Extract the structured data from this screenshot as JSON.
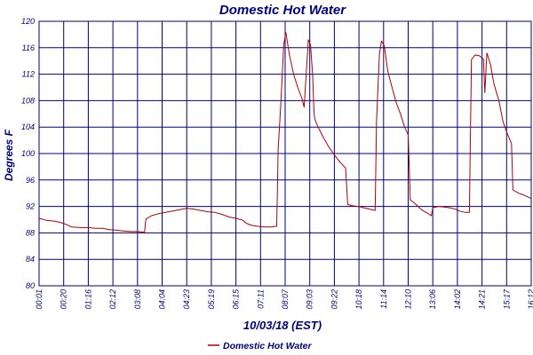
{
  "chart_data": {
    "type": "line",
    "title": "Domestic Hot Water",
    "xlabel": "10/03/18 (EST)",
    "ylabel": "Degrees F",
    "ylim": [
      80,
      120
    ],
    "yticks": [
      "80",
      "84",
      "88",
      "92",
      "96",
      "100",
      "104",
      "108",
      "112",
      "116",
      "120"
    ],
    "xticks": [
      "00:01",
      "00:20",
      "01:16",
      "02:12",
      "03:08",
      "04:04",
      "04:23",
      "05:19",
      "06:15",
      "07:11",
      "08:07",
      "09:03",
      "09:22",
      "10:18",
      "11:14",
      "12:10",
      "13:06",
      "14:02",
      "14:21",
      "15:17",
      "16:12"
    ],
    "grid": true,
    "legend_position": "bottom-center",
    "colors": {
      "series": "#b00000",
      "grid": "#000080",
      "text": "#000080"
    },
    "series": [
      {
        "name": "Domestic Hot Water",
        "points": [
          [
            0,
            90.2
          ],
          [
            0.5,
            89.9
          ],
          [
            1,
            89.8
          ],
          [
            1.5,
            89.6
          ],
          [
            1.9,
            89.3
          ],
          [
            2.3,
            88.9
          ],
          [
            3,
            88.8
          ],
          [
            3.5,
            88.8
          ],
          [
            4,
            88.7
          ],
          [
            4.5,
            88.7
          ],
          [
            5,
            88.5
          ],
          [
            5.5,
            88.4
          ],
          [
            6,
            88.3
          ],
          [
            6.5,
            88.2
          ],
          [
            7,
            88.2
          ],
          [
            7.5,
            88.1
          ],
          [
            7.6,
            90.1
          ],
          [
            8,
            90.6
          ],
          [
            8.5,
            90.9
          ],
          [
            9,
            91.1
          ],
          [
            9.5,
            91.3
          ],
          [
            10,
            91.5
          ],
          [
            10.5,
            91.7
          ],
          [
            11,
            91.6
          ],
          [
            11.5,
            91.4
          ],
          [
            12,
            91.2
          ],
          [
            12.5,
            91.1
          ],
          [
            13,
            90.8
          ],
          [
            13.5,
            90.4
          ],
          [
            14,
            90.2
          ],
          [
            14.5,
            89.9
          ],
          [
            14.7,
            89.5
          ],
          [
            15,
            89.2
          ],
          [
            15.5,
            89.0
          ],
          [
            16,
            88.9
          ],
          [
            16.5,
            88.9
          ],
          [
            16.9,
            89.0
          ],
          [
            17.0,
            100.5
          ],
          [
            17.2,
            108
          ],
          [
            17.4,
            116.5
          ],
          [
            17.55,
            118.3
          ],
          [
            17.8,
            115
          ],
          [
            18.1,
            112
          ],
          [
            18.4,
            110
          ],
          [
            18.7,
            108.3
          ],
          [
            18.85,
            107.0
          ],
          [
            19.0,
            112
          ],
          [
            19.15,
            117.2
          ],
          [
            19.3,
            116.5
          ],
          [
            19.45,
            112
          ],
          [
            19.55,
            106.5
          ],
          [
            19.6,
            105.3
          ],
          [
            19.8,
            104.2
          ],
          [
            20.2,
            102.5
          ],
          [
            20.6,
            101.0
          ],
          [
            21.0,
            99.8
          ],
          [
            21.4,
            98.7
          ],
          [
            21.8,
            97.8
          ],
          [
            21.95,
            92.3
          ],
          [
            22.3,
            92.1
          ],
          [
            22.7,
            92.0
          ],
          [
            23.1,
            91.8
          ],
          [
            23.5,
            91.6
          ],
          [
            23.9,
            91.4
          ],
          [
            24.0,
            105
          ],
          [
            24.2,
            115
          ],
          [
            24.35,
            117.0
          ],
          [
            24.55,
            116.3
          ],
          [
            24.8,
            112.5
          ],
          [
            25.1,
            110.0
          ],
          [
            25.4,
            107.7
          ],
          [
            25.7,
            106.0
          ],
          [
            26.0,
            104.0
          ],
          [
            26.25,
            102.8
          ],
          [
            26.4,
            93.0
          ],
          [
            26.8,
            92.3
          ],
          [
            27.2,
            91.5
          ],
          [
            27.6,
            91.0
          ],
          [
            27.9,
            90.6
          ],
          [
            28.0,
            91.8
          ],
          [
            28.4,
            92.0
          ],
          [
            28.8,
            91.9
          ],
          [
            29.2,
            91.8
          ],
          [
            29.6,
            91.6
          ],
          [
            29.9,
            91.3
          ],
          [
            30.3,
            91.1
          ],
          [
            30.6,
            91.1
          ],
          [
            30.75,
            114.2
          ],
          [
            31.0,
            114.9
          ],
          [
            31.3,
            114.8
          ],
          [
            31.6,
            114.3
          ],
          [
            31.7,
            109.2
          ],
          [
            31.85,
            115.2
          ],
          [
            32.1,
            113.5
          ],
          [
            32.35,
            110.5
          ],
          [
            32.7,
            108.0
          ],
          [
            33.0,
            104.8
          ],
          [
            33.3,
            103.0
          ],
          [
            33.6,
            101.5
          ],
          [
            33.7,
            94.5
          ],
          [
            34.1,
            94.0
          ],
          [
            34.5,
            93.7
          ],
          [
            35.0,
            93.2
          ]
        ]
      }
    ]
  }
}
